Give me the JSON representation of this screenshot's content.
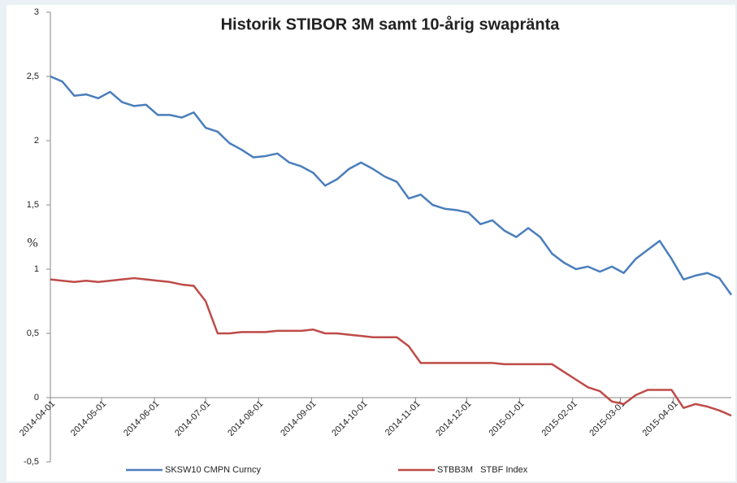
{
  "chart_data": {
    "type": "line",
    "title": "Historik STIBOR 3M samt 10-årig swapränta",
    "ylabel": "%",
    "x": [
      "2014-04-01",
      "2014-04-08",
      "2014-04-15",
      "2014-04-22",
      "2014-04-29",
      "2014-05-06",
      "2014-05-13",
      "2014-05-20",
      "2014-05-27",
      "2014-06-03",
      "2014-06-10",
      "2014-06-17",
      "2014-06-24",
      "2014-07-01",
      "2014-07-08",
      "2014-07-15",
      "2014-07-22",
      "2014-07-29",
      "2014-08-05",
      "2014-08-12",
      "2014-08-19",
      "2014-08-26",
      "2014-09-02",
      "2014-09-09",
      "2014-09-16",
      "2014-09-23",
      "2014-09-30",
      "2014-10-07",
      "2014-10-14",
      "2014-10-21",
      "2014-10-28",
      "2014-11-04",
      "2014-11-11",
      "2014-11-18",
      "2014-11-25",
      "2014-12-02",
      "2014-12-09",
      "2014-12-16",
      "2014-12-23",
      "2014-12-30",
      "2015-01-06",
      "2015-01-13",
      "2015-01-20",
      "2015-01-27",
      "2015-02-03",
      "2015-02-10",
      "2015-02-17",
      "2015-02-24",
      "2015-03-03",
      "2015-03-10",
      "2015-03-17",
      "2015-03-24",
      "2015-03-31",
      "2015-04-07",
      "2015-04-14",
      "2015-04-21",
      "2015-04-28",
      "2015-05-05"
    ],
    "series": [
      {
        "name": "SKSW10 CMPN Curncy",
        "color": "#4a7ebb",
        "values": [
          2.5,
          2.46,
          2.35,
          2.36,
          2.33,
          2.38,
          2.3,
          2.27,
          2.28,
          2.2,
          2.2,
          2.18,
          2.22,
          2.1,
          2.07,
          1.98,
          1.93,
          1.87,
          1.88,
          1.9,
          1.83,
          1.8,
          1.75,
          1.65,
          1.7,
          1.78,
          1.83,
          1.78,
          1.72,
          1.68,
          1.55,
          1.58,
          1.5,
          1.47,
          1.46,
          1.44,
          1.35,
          1.38,
          1.3,
          1.25,
          1.32,
          1.25,
          1.12,
          1.05,
          1.0,
          1.02,
          0.98,
          1.02,
          0.97,
          1.08,
          1.15,
          1.22,
          1.08,
          0.92,
          0.95,
          0.97,
          0.93,
          0.8
        ]
      },
      {
        "name": "STBB3M   STBF Index",
        "color": "#be4b48",
        "values": [
          0.92,
          0.91,
          0.9,
          0.91,
          0.9,
          0.91,
          0.92,
          0.93,
          0.92,
          0.91,
          0.9,
          0.88,
          0.87,
          0.75,
          0.5,
          0.5,
          0.51,
          0.51,
          0.51,
          0.52,
          0.52,
          0.52,
          0.53,
          0.5,
          0.5,
          0.49,
          0.48,
          0.47,
          0.47,
          0.47,
          0.4,
          0.27,
          0.27,
          0.27,
          0.27,
          0.27,
          0.27,
          0.27,
          0.26,
          0.26,
          0.26,
          0.26,
          0.26,
          0.2,
          0.14,
          0.08,
          0.05,
          -0.03,
          -0.05,
          0.02,
          0.06,
          0.06,
          0.06,
          -0.08,
          -0.05,
          -0.07,
          -0.1,
          -0.14
        ]
      }
    ],
    "xlim": [
      "2014-04-01",
      "2015-05-05"
    ],
    "xticks": [
      "2014-04-01",
      "2014-05-01",
      "2014-06-01",
      "2014-07-01",
      "2014-08-01",
      "2014-09-01",
      "2014-10-01",
      "2014-11-01",
      "2014-12-01",
      "2015-01-01",
      "2015-02-01",
      "2015-03-01",
      "2015-04-01"
    ],
    "ylim": [
      -0.5,
      3
    ],
    "yticks": [
      {
        "value": -0.5,
        "label": "-0,5"
      },
      0,
      {
        "value": 0.5,
        "label": "0,5"
      },
      1,
      {
        "value": 1.5,
        "label": "1,5"
      },
      2,
      {
        "value": 2.5,
        "label": "2,5"
      },
      3
    ],
    "legend": "bottom"
  }
}
